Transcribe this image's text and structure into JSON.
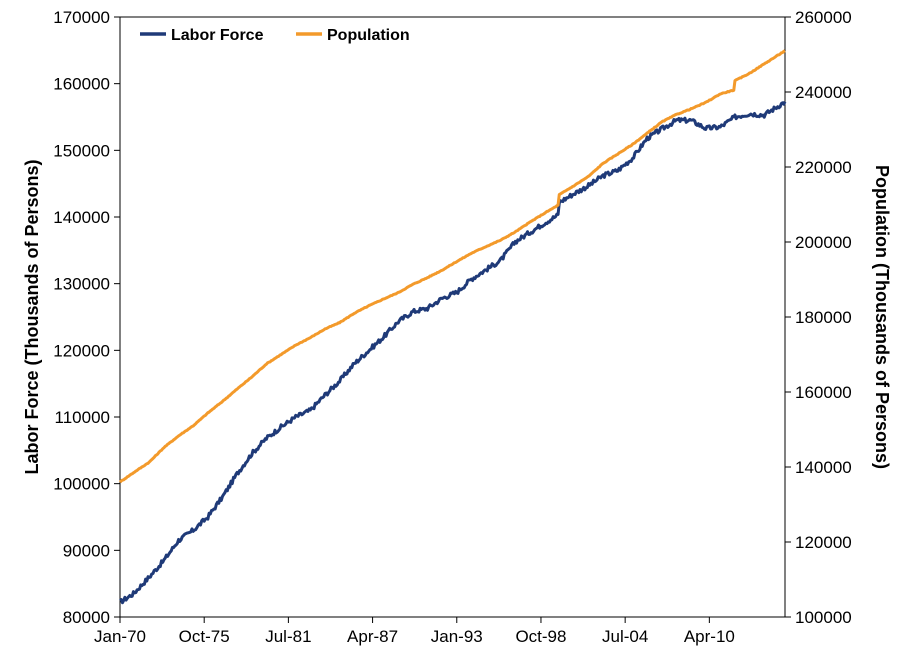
{
  "chart_data": {
    "type": "line",
    "title": "",
    "xlabel": "",
    "ylabel": "Labor Force (Thousands of Persons)",
    "y2label": "Population (Thousands of Persons)",
    "x_tick_labels": [
      "Jan-70",
      "Oct-75",
      "Jul-81",
      "Apr-87",
      "Jan-93",
      "Oct-98",
      "Jul-04",
      "Apr-10"
    ],
    "x_tick_dates": [
      "1970-01",
      "1975-10",
      "1981-07",
      "1987-04",
      "1993-01",
      "1998-10",
      "2004-07",
      "2010-04"
    ],
    "xlim": [
      "1970-01",
      "2015-06"
    ],
    "ylim": [
      80000,
      170000
    ],
    "y_ticks": [
      80000,
      90000,
      100000,
      110000,
      120000,
      130000,
      140000,
      150000,
      160000,
      170000
    ],
    "y2lim": [
      100000,
      260000
    ],
    "y2_ticks": [
      100000,
      120000,
      140000,
      160000,
      180000,
      200000,
      220000,
      240000,
      260000
    ],
    "grid": false,
    "legend_position": "top-left",
    "series": [
      {
        "name": "Labor Force",
        "axis": "left",
        "color": "#1f3a78",
        "points": [
          [
            "1970-01",
            82200
          ],
          [
            "1970-12",
            83500
          ],
          [
            "1972-01",
            86000
          ],
          [
            "1973-01",
            88500
          ],
          [
            "1974-01",
            91500
          ],
          [
            "1975-01",
            93000
          ],
          [
            "1976-01",
            95000
          ],
          [
            "1977-01",
            98000
          ],
          [
            "1978-01",
            101500
          ],
          [
            "1979-01",
            104500
          ],
          [
            "1980-01",
            106800
          ],
          [
            "1981-01",
            108500
          ],
          [
            "1982-01",
            110000
          ],
          [
            "1983-01",
            111000
          ],
          [
            "1984-01",
            113300
          ],
          [
            "1985-01",
            115400
          ],
          [
            "1986-01",
            118000
          ],
          [
            "1987-01",
            120000
          ],
          [
            "1988-01",
            122000
          ],
          [
            "1989-01",
            124300
          ],
          [
            "1990-01",
            125800
          ],
          [
            "1991-01",
            126300
          ],
          [
            "1992-01",
            127800
          ],
          [
            "1993-01",
            128700
          ],
          [
            "1994-01",
            130700
          ],
          [
            "1995-01",
            132100
          ],
          [
            "1996-01",
            133500
          ],
          [
            "1997-01",
            136300
          ],
          [
            "1998-01",
            137700
          ],
          [
            "1999-01",
            139100
          ],
          [
            "1999-12",
            140300
          ],
          [
            "2000-01",
            142200
          ],
          [
            "2001-01",
            143500
          ],
          [
            "2002-01",
            144700
          ],
          [
            "2003-01",
            146200
          ],
          [
            "2004-01",
            147000
          ],
          [
            "2005-01",
            148800
          ],
          [
            "2006-01",
            151800
          ],
          [
            "2007-01",
            153200
          ],
          [
            "2008-01",
            154500
          ],
          [
            "2009-01",
            154500
          ],
          [
            "2010-01",
            153300
          ],
          [
            "2011-01",
            153500
          ],
          [
            "2012-01",
            155000
          ],
          [
            "2013-01",
            155500
          ],
          [
            "2014-01",
            155300
          ],
          [
            "2015-06",
            157300
          ]
        ]
      },
      {
        "name": "Population",
        "axis": "right",
        "color": "#f39a2b",
        "points": [
          [
            "1970-01",
            136000
          ],
          [
            "1971-01",
            138700
          ],
          [
            "1972-01",
            141300
          ],
          [
            "1973-01",
            145200
          ],
          [
            "1974-01",
            148300
          ],
          [
            "1975-01",
            151000
          ],
          [
            "1976-01",
            154400
          ],
          [
            "1977-01",
            157500
          ],
          [
            "1978-01",
            160800
          ],
          [
            "1979-01",
            164000
          ],
          [
            "1980-01",
            167500
          ],
          [
            "1981-01",
            170000
          ],
          [
            "1982-01",
            172500
          ],
          [
            "1983-01",
            174500
          ],
          [
            "1984-01",
            176800
          ],
          [
            "1985-01",
            178500
          ],
          [
            "1986-01",
            181000
          ],
          [
            "1987-01",
            183000
          ],
          [
            "1988-01",
            184800
          ],
          [
            "1989-01",
            186500
          ],
          [
            "1990-01",
            188700
          ],
          [
            "1991-01",
            190500
          ],
          [
            "1992-01",
            192500
          ],
          [
            "1993-01",
            194800
          ],
          [
            "1994-01",
            197000
          ],
          [
            "1995-01",
            198800
          ],
          [
            "1996-01",
            200500
          ],
          [
            "1997-01",
            202700
          ],
          [
            "1998-01",
            205300
          ],
          [
            "1999-01",
            207700
          ],
          [
            "1999-12",
            209800
          ],
          [
            "2000-01",
            212600
          ],
          [
            "2001-01",
            215000
          ],
          [
            "2002-01",
            217500
          ],
          [
            "2003-01",
            221000
          ],
          [
            "2004-01",
            223500
          ],
          [
            "2005-01",
            226000
          ],
          [
            "2006-01",
            229000
          ],
          [
            "2007-01",
            232000
          ],
          [
            "2008-01",
            234000
          ],
          [
            "2009-01",
            235500
          ],
          [
            "2010-01",
            237200
          ],
          [
            "2011-01",
            239500
          ],
          [
            "2011-12",
            240500
          ],
          [
            "2012-01",
            243000
          ],
          [
            "2013-01",
            245000
          ],
          [
            "2014-01",
            247500
          ],
          [
            "2015-06",
            251000
          ]
        ]
      }
    ]
  }
}
